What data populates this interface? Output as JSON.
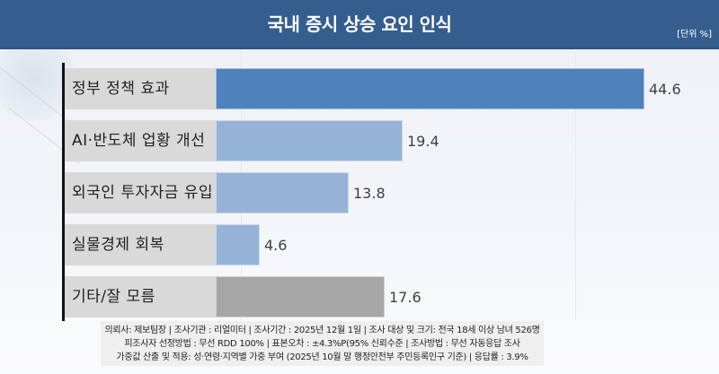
{
  "header": {
    "title": "국내 증시 상승 요인 인식",
    "unit": "[단위 %]",
    "background_color": "#355e8f"
  },
  "chart_data": {
    "type": "bar",
    "orientation": "horizontal",
    "title": "국내 증시 상승 요인 인식",
    "unit_label": "[단위 %]",
    "xlabel": "",
    "ylabel": "",
    "categories": [
      "정부 정책 효과",
      "AI·반도체 업황 개선",
      "외국인 투자자금 유입",
      "실물경제 회복",
      "기타/잘 모름"
    ],
    "values": [
      44.6,
      19.4,
      13.8,
      4.6,
      17.6
    ],
    "colors": [
      "#4f81bd",
      "#95b3d7",
      "#95b3d7",
      "#95b3d7",
      "#a6a6a6"
    ],
    "xlim": [
      0,
      50
    ],
    "grid": false,
    "legend": null,
    "data_labels": [
      "44.6",
      "19.4",
      "13.8",
      "4.6",
      "17.6"
    ]
  },
  "rows": [
    {
      "label": "정부 정책 효과",
      "value": "44.6",
      "pct": 44.6,
      "color": "#4f81bd"
    },
    {
      "label": "AI·반도체 업황 개선",
      "value": "19.4",
      "pct": 19.4,
      "color": "#95b3d7"
    },
    {
      "label": "외국인 투자자금 유입",
      "value": "13.8",
      "pct": 13.8,
      "color": "#95b3d7"
    },
    {
      "label": "실물경제 회복",
      "value": "4.6",
      "pct": 4.6,
      "color": "#95b3d7"
    },
    {
      "label": "기타/잘 모름",
      "value": "17.6",
      "pct": 17.6,
      "color": "#a6a6a6"
    }
  ],
  "footnote": {
    "line1": "의뢰사: 제보팀장 | 조사기관 : 리얼미터 |  조사기간 : 2025년 12월 1일 | 조사 대상 및 크기: 전국 18세 이상 남녀 526명",
    "line2": "피조사자 선정방법 : 무선 RDD 100% | 표본오차 : ±4.3%P(95% 신뢰수준 | 조사방법 : 무선 자동응답 조사",
    "line3": "가중값 산출 및 적용: 성·연령·지역별 가중 부여 (2025년 10월 말 행정안전부 주민등록인구 기준) | 응답률 : 3.9%"
  }
}
